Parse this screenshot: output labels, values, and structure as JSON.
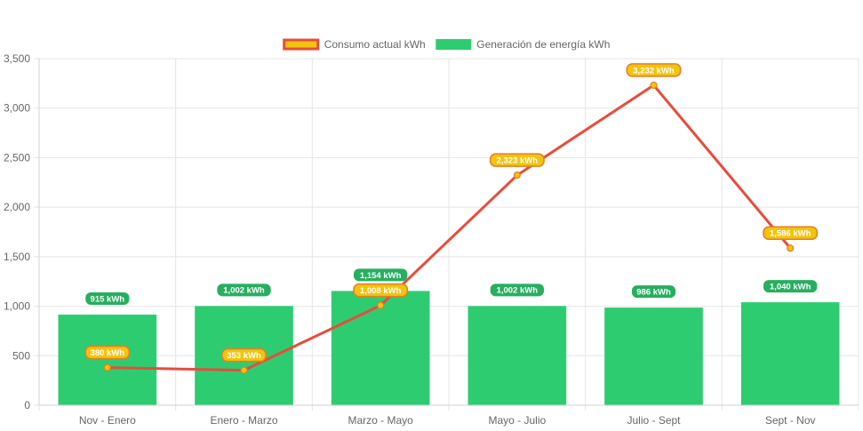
{
  "chart_data": {
    "type": "bar",
    "categories": [
      "Nov - Enero",
      "Enero - Marzo",
      "Marzo - Mayo",
      "Mayo - Julio",
      "Julio - Sept",
      "Sept - Nov"
    ],
    "series": [
      {
        "name": "Consumo actual kWh",
        "type": "line",
        "values": [
          380,
          353,
          1008,
          2323,
          3232,
          1586
        ],
        "labels": [
          "380 kWh",
          "353 kWh",
          "1,008 kWh",
          "2,323 kWh",
          "3,232 kWh",
          "1,586 kWh"
        ],
        "color": "#e74c3c",
        "label_fill": "#f1c40f",
        "label_border": "#e67e22"
      },
      {
        "name": "Generación de energía kWh",
        "type": "bar",
        "values": [
          915,
          1002,
          1154,
          1002,
          986,
          1040
        ],
        "labels": [
          "915 kWh",
          "1,002 kWh",
          "1,154 kWh",
          "1,002 kWh",
          "986 kWh",
          "1,040 kWh"
        ],
        "color": "#2ecc71",
        "label_fill": "#27ae60"
      }
    ],
    "ylim": [
      0,
      3500
    ],
    "yticks": [
      0,
      500,
      1000,
      1500,
      2000,
      2500,
      3000,
      3500
    ],
    "ytick_labels": [
      "0",
      "500",
      "1,000",
      "1,500",
      "2,000",
      "2,500",
      "3,000",
      "3,500"
    ],
    "grid": true,
    "legend_position": "top"
  }
}
